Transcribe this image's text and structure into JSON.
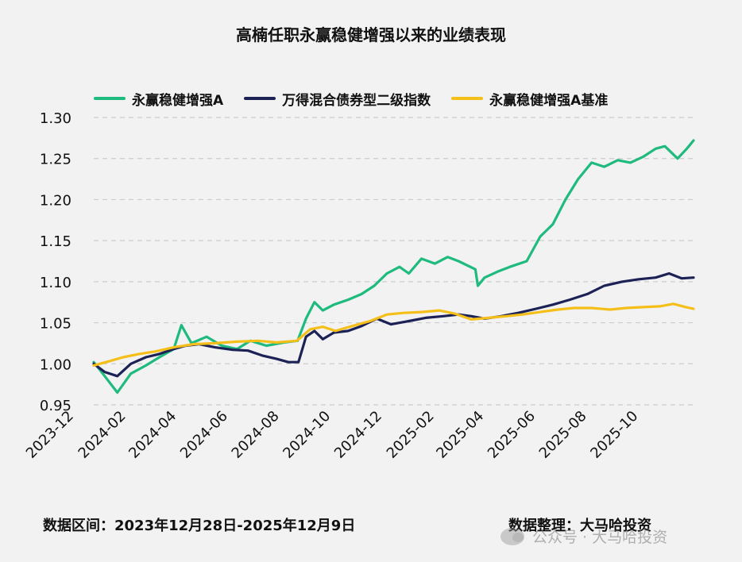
{
  "title": "高楠任职永赢稳健增强以来的业绩表现",
  "chart_data": {
    "type": "line",
    "title": "高楠任职永赢稳健增强以来的业绩表现",
    "ylim": [
      0.95,
      1.3
    ],
    "y_ticks": [
      "0.95",
      "1.00",
      "1.05",
      "1.10",
      "1.15",
      "1.20",
      "1.25",
      "1.30"
    ],
    "x_range": [
      "2023-12-28",
      "2025-12-09"
    ],
    "x_ticks": [
      "2023-12",
      "2024-02",
      "2024-04",
      "2024-06",
      "2024-08",
      "2024-10",
      "2024-12",
      "2025-02",
      "2025-04",
      "2025-06",
      "2025-08",
      "2025-10"
    ],
    "x_tick_dates": [
      "2023-12-01",
      "2024-02-01",
      "2024-04-01",
      "2024-06-01",
      "2024-08-01",
      "2024-10-01",
      "2024-12-01",
      "2025-02-01",
      "2025-04-01",
      "2025-06-01",
      "2025-08-01",
      "2025-10-01"
    ],
    "grid": "horizontal dashed",
    "legend_position": "top",
    "series": [
      {
        "name": "永赢稳健增强A",
        "color": "#1fba7e",
        "x": [
          "2023-12-28",
          "2024-01-10",
          "2024-01-25",
          "2024-02-10",
          "2024-02-28",
          "2024-03-15",
          "2024-04-01",
          "2024-04-10",
          "2024-04-22",
          "2024-05-10",
          "2024-05-28",
          "2024-06-15",
          "2024-07-01",
          "2024-07-20",
          "2024-08-10",
          "2024-08-26",
          "2024-09-05",
          "2024-09-15",
          "2024-09-25",
          "2024-10-08",
          "2024-10-25",
          "2024-11-10",
          "2024-11-25",
          "2024-12-10",
          "2024-12-25",
          "2025-01-05",
          "2025-01-20",
          "2025-02-05",
          "2025-02-20",
          "2025-03-05",
          "2025-03-25",
          "2025-03-28",
          "2025-04-05",
          "2025-04-20",
          "2025-05-05",
          "2025-05-25",
          "2025-06-10",
          "2025-06-25",
          "2025-07-10",
          "2025-07-25",
          "2025-08-10",
          "2025-08-25",
          "2025-09-10",
          "2025-09-25",
          "2025-10-10",
          "2025-10-25",
          "2025-11-05",
          "2025-11-20",
          "2025-12-01",
          "2025-12-09"
        ],
        "y": [
          1.002,
          0.985,
          0.965,
          0.988,
          0.998,
          1.008,
          1.018,
          1.047,
          1.025,
          1.033,
          1.022,
          1.018,
          1.028,
          1.022,
          1.026,
          1.028,
          1.055,
          1.075,
          1.065,
          1.072,
          1.078,
          1.085,
          1.095,
          1.11,
          1.118,
          1.11,
          1.128,
          1.122,
          1.13,
          1.125,
          1.115,
          1.095,
          1.105,
          1.112,
          1.118,
          1.125,
          1.155,
          1.17,
          1.2,
          1.225,
          1.245,
          1.24,
          1.248,
          1.245,
          1.252,
          1.262,
          1.265,
          1.25,
          1.262,
          1.272
        ]
      },
      {
        "name": "万得混合债券型二级指数",
        "color": "#1c2256",
        "x": [
          "2023-12-28",
          "2024-01-10",
          "2024-01-25",
          "2024-02-10",
          "2024-02-28",
          "2024-03-15",
          "2024-04-01",
          "2024-04-15",
          "2024-05-01",
          "2024-05-20",
          "2024-06-10",
          "2024-06-28",
          "2024-07-15",
          "2024-08-01",
          "2024-08-15",
          "2024-08-27",
          "2024-09-05",
          "2024-09-15",
          "2024-09-25",
          "2024-10-08",
          "2024-10-25",
          "2024-11-10",
          "2024-11-28",
          "2024-12-15",
          "2025-01-05",
          "2025-01-25",
          "2025-02-15",
          "2025-03-05",
          "2025-03-20",
          "2025-04-05",
          "2025-04-25",
          "2025-05-15",
          "2025-06-05",
          "2025-06-25",
          "2025-07-15",
          "2025-08-05",
          "2025-08-25",
          "2025-09-15",
          "2025-10-05",
          "2025-10-25",
          "2025-11-10",
          "2025-11-25",
          "2025-12-09"
        ],
        "y": [
          1.0,
          0.99,
          0.985,
          1.0,
          1.008,
          1.012,
          1.018,
          1.022,
          1.024,
          1.02,
          1.017,
          1.016,
          1.01,
          1.006,
          1.002,
          1.002,
          1.033,
          1.04,
          1.03,
          1.038,
          1.04,
          1.046,
          1.055,
          1.048,
          1.052,
          1.056,
          1.058,
          1.06,
          1.058,
          1.055,
          1.058,
          1.062,
          1.067,
          1.072,
          1.078,
          1.085,
          1.095,
          1.1,
          1.103,
          1.105,
          1.11,
          1.104,
          1.105
        ]
      },
      {
        "name": "永赢稳健增强A基准",
        "color": "#f5bf19",
        "x": [
          "2023-12-28",
          "2024-01-15",
          "2024-02-01",
          "2024-02-20",
          "2024-03-10",
          "2024-04-01",
          "2024-04-25",
          "2024-05-20",
          "2024-06-15",
          "2024-07-10",
          "2024-08-01",
          "2024-08-25",
          "2024-09-10",
          "2024-09-25",
          "2024-10-10",
          "2024-10-30",
          "2024-11-20",
          "2024-12-10",
          "2024-12-30",
          "2025-01-20",
          "2025-02-10",
          "2025-03-01",
          "2025-03-20",
          "2025-04-10",
          "2025-05-01",
          "2025-05-20",
          "2025-06-10",
          "2025-07-01",
          "2025-07-20",
          "2025-08-10",
          "2025-09-01",
          "2025-09-20",
          "2025-10-10",
          "2025-10-30",
          "2025-11-15",
          "2025-11-30",
          "2025-12-09"
        ],
        "y": [
          0.998,
          1.003,
          1.008,
          1.012,
          1.015,
          1.02,
          1.024,
          1.025,
          1.027,
          1.028,
          1.026,
          1.028,
          1.042,
          1.045,
          1.04,
          1.046,
          1.052,
          1.06,
          1.062,
          1.063,
          1.065,
          1.061,
          1.054,
          1.056,
          1.058,
          1.06,
          1.063,
          1.066,
          1.068,
          1.068,
          1.066,
          1.068,
          1.069,
          1.07,
          1.073,
          1.069,
          1.067
        ]
      }
    ]
  },
  "footer": {
    "date_range": "数据区间：2023年12月28日-2025年12月9日",
    "source": "数据整理：大马哈投资"
  },
  "watermark": {
    "text": "公众号 · 大马哈投资"
  }
}
